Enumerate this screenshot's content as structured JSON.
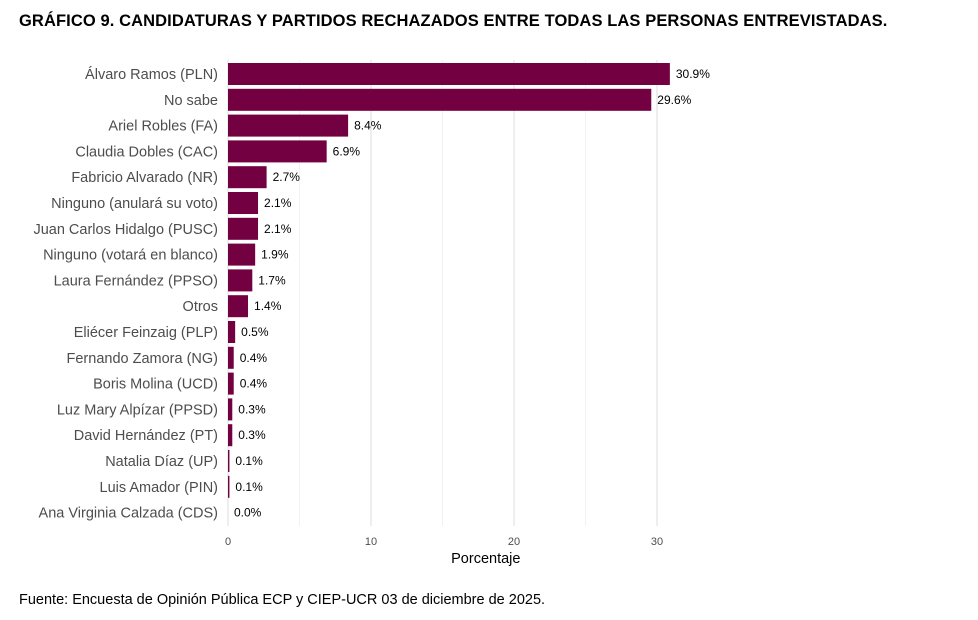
{
  "header": {
    "title": "GRÁFICO 9. CANDIDATURAS Y PARTIDOS RECHAZADOS ENTRE TODAS LAS PERSONAS ENTREVISTADAS."
  },
  "footer": {
    "source": "Fuente: Encuesta de Opinión Pública ECP y CIEP-UCR 03 de diciembre de 2025."
  },
  "chart_data": {
    "type": "bar",
    "orientation": "horizontal",
    "title": "GRÁFICO 9. CANDIDATURAS Y PARTIDOS RECHAZADOS ENTRE TODAS LAS PERSONAS ENTREVISTADAS.",
    "xlabel": "Porcentaje",
    "ylabel": "",
    "xlim": [
      0,
      32
    ],
    "xticks": [
      0,
      10,
      20,
      30
    ],
    "grid": true,
    "bar_color": "#730040",
    "categories": [
      "Álvaro Ramos (PLN)",
      "No sabe",
      "Ariel Robles (FA)",
      "Claudia Dobles (CAC)",
      "Fabricio Alvarado (NR)",
      "Ninguno (anulará su voto)",
      "Juan Carlos Hidalgo (PUSC)",
      "Ninguno (votará en blanco)",
      "Laura Fernández (PPSO)",
      "Otros",
      "Eliécer Feinzaig (PLP)",
      "Fernando Zamora (NG)",
      "Boris Molina (UCD)",
      "Luz Mary Alpízar (PPSD)",
      "David Hernández (PT)",
      "Natalia Díaz (UP)",
      "Luis Amador (PIN)",
      "Ana Virginia Calzada (CDS)"
    ],
    "values": [
      30.9,
      29.6,
      8.4,
      6.9,
      2.7,
      2.1,
      2.1,
      1.9,
      1.7,
      1.4,
      0.5,
      0.4,
      0.4,
      0.3,
      0.3,
      0.1,
      0.1,
      0.0
    ],
    "data_labels": [
      "30.9%",
      "29.6%",
      "8.4%",
      "6.9%",
      "2.7%",
      "2.1%",
      "2.1%",
      "1.9%",
      "1.7%",
      "1.4%",
      "0.5%",
      "0.4%",
      "0.4%",
      "0.3%",
      "0.3%",
      "0.1%",
      "0.1%",
      "0.0%"
    ]
  }
}
